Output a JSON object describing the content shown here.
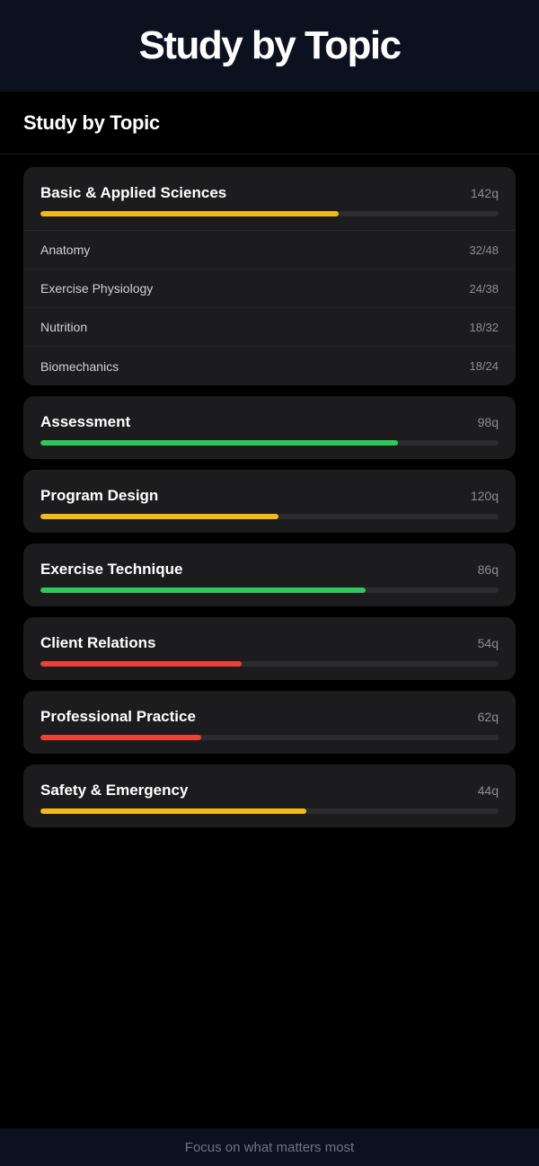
{
  "hero": {
    "title": "Study by Topic"
  },
  "nav": {
    "title": "Study by Topic"
  },
  "colors": {
    "yellow": "#f2b918",
    "green": "#30c85a",
    "red": "#ec4137",
    "track": "#2c2c2e"
  },
  "topics": [
    {
      "name": "Basic & Applied Sciences",
      "count": "142q",
      "progress": 0.65,
      "color": "#f2b918",
      "expanded": true,
      "subtopics": [
        {
          "name": "Anatomy",
          "count": "32/48"
        },
        {
          "name": "Exercise Physiology",
          "count": "24/38"
        },
        {
          "name": "Nutrition",
          "count": "18/32"
        },
        {
          "name": "Biomechanics",
          "count": "18/24"
        }
      ]
    },
    {
      "name": "Assessment",
      "count": "98q",
      "progress": 0.78,
      "color": "#30c85a"
    },
    {
      "name": "Program Design",
      "count": "120q",
      "progress": 0.52,
      "color": "#f2b918"
    },
    {
      "name": "Exercise Technique",
      "count": "86q",
      "progress": 0.71,
      "color": "#30c85a"
    },
    {
      "name": "Client Relations",
      "count": "54q",
      "progress": 0.44,
      "color": "#ec4137"
    },
    {
      "name": "Professional Practice",
      "count": "62q",
      "progress": 0.35,
      "color": "#ec4137"
    },
    {
      "name": "Safety & Emergency",
      "count": "44q",
      "progress": 0.58,
      "color": "#f2b918"
    }
  ],
  "footer": {
    "text": "Focus on what matters most"
  }
}
